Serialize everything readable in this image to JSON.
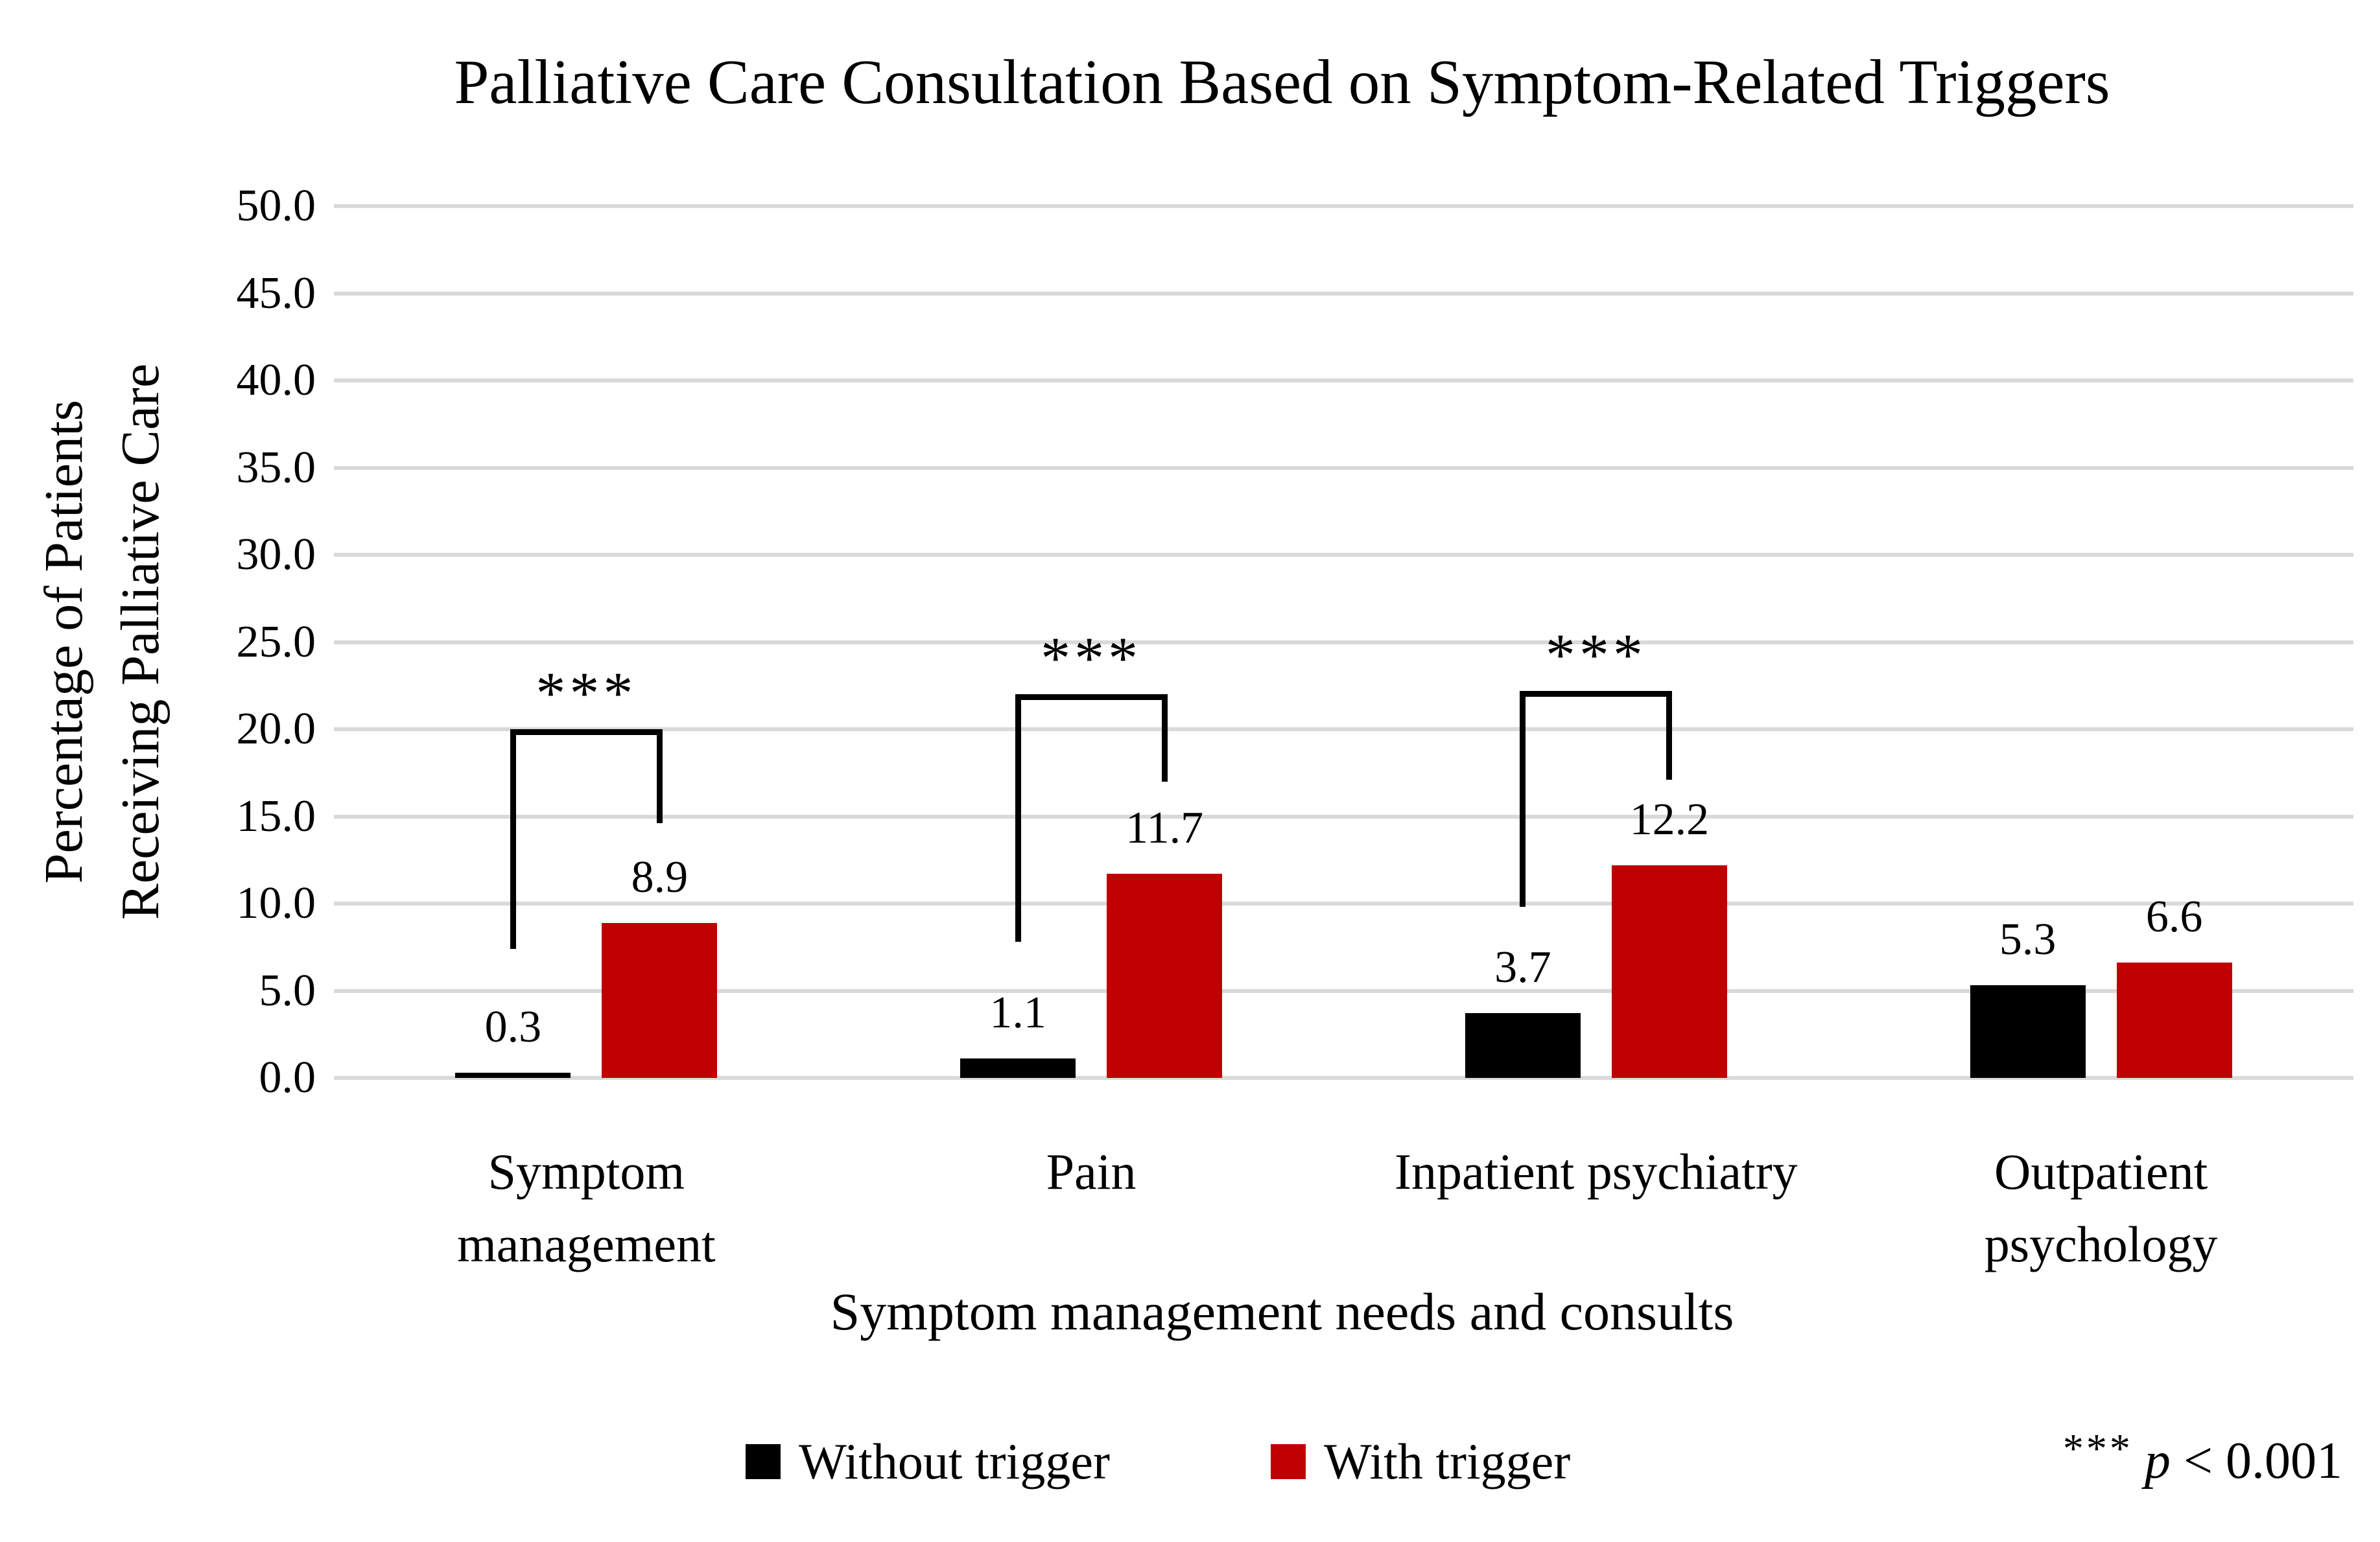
{
  "title": "Palliative Care Consultation Based on Symptom-Related Triggers",
  "y_axis": {
    "title_line1": "Percentage of Patients",
    "title_line2": "Receiving Palliative Care",
    "tick_labels": [
      "50.0",
      "45.0",
      "40.0",
      "35.0",
      "30.0",
      "25.0",
      "20.0",
      "15.0",
      "10.0",
      "5.0",
      "0.0"
    ]
  },
  "x_axis": {
    "title": "Symptom management needs and consults"
  },
  "legend": {
    "items": [
      {
        "label": "Without trigger",
        "color": "#000000"
      },
      {
        "label": "With trigger",
        "color": "#c00000"
      }
    ]
  },
  "note": {
    "stars": "***",
    "p_symbol": "p",
    "comparison": "< 0.001"
  },
  "chart_data": {
    "type": "bar",
    "title": "Palliative Care Consultation Based on Symptom-Related Triggers",
    "xlabel": "Symptom management needs and consults",
    "ylabel": "Percentage of Patients Receiving Palliative Care",
    "ylim": [
      0,
      50
    ],
    "ytick_step": 5,
    "grid": true,
    "legend_position": "bottom",
    "categories": [
      "Symptom management",
      "Pain",
      "Inpatient psychiatry",
      "Outpatient psychology"
    ],
    "category_label_lines": [
      [
        "Symptom",
        "management"
      ],
      [
        "Pain"
      ],
      [
        "Inpatient psychiatry"
      ],
      [
        "Outpatient",
        "psychology"
      ]
    ],
    "series": [
      {
        "name": "Without trigger",
        "color": "#000000",
        "values": [
          0.3,
          1.1,
          3.7,
          5.3
        ]
      },
      {
        "name": "With trigger",
        "color": "#c00000",
        "values": [
          8.9,
          11.7,
          12.2,
          6.6
        ]
      }
    ],
    "significance": [
      {
        "category_index": 0,
        "stars": "***",
        "bracket_top_value": 20.0,
        "left_drop_value": 7.4,
        "right_drop_value": 14.6,
        "p_text": "p < 0.001"
      },
      {
        "category_index": 1,
        "stars": "***",
        "bracket_top_value": 22.0,
        "left_drop_value": 7.8,
        "right_drop_value": 17.0,
        "p_text": "p < 0.001"
      },
      {
        "category_index": 2,
        "stars": "***",
        "bracket_top_value": 22.2,
        "left_drop_value": 9.8,
        "right_drop_value": 17.1,
        "p_text": "p < 0.001"
      }
    ],
    "annotation": "*** p < 0.001"
  }
}
